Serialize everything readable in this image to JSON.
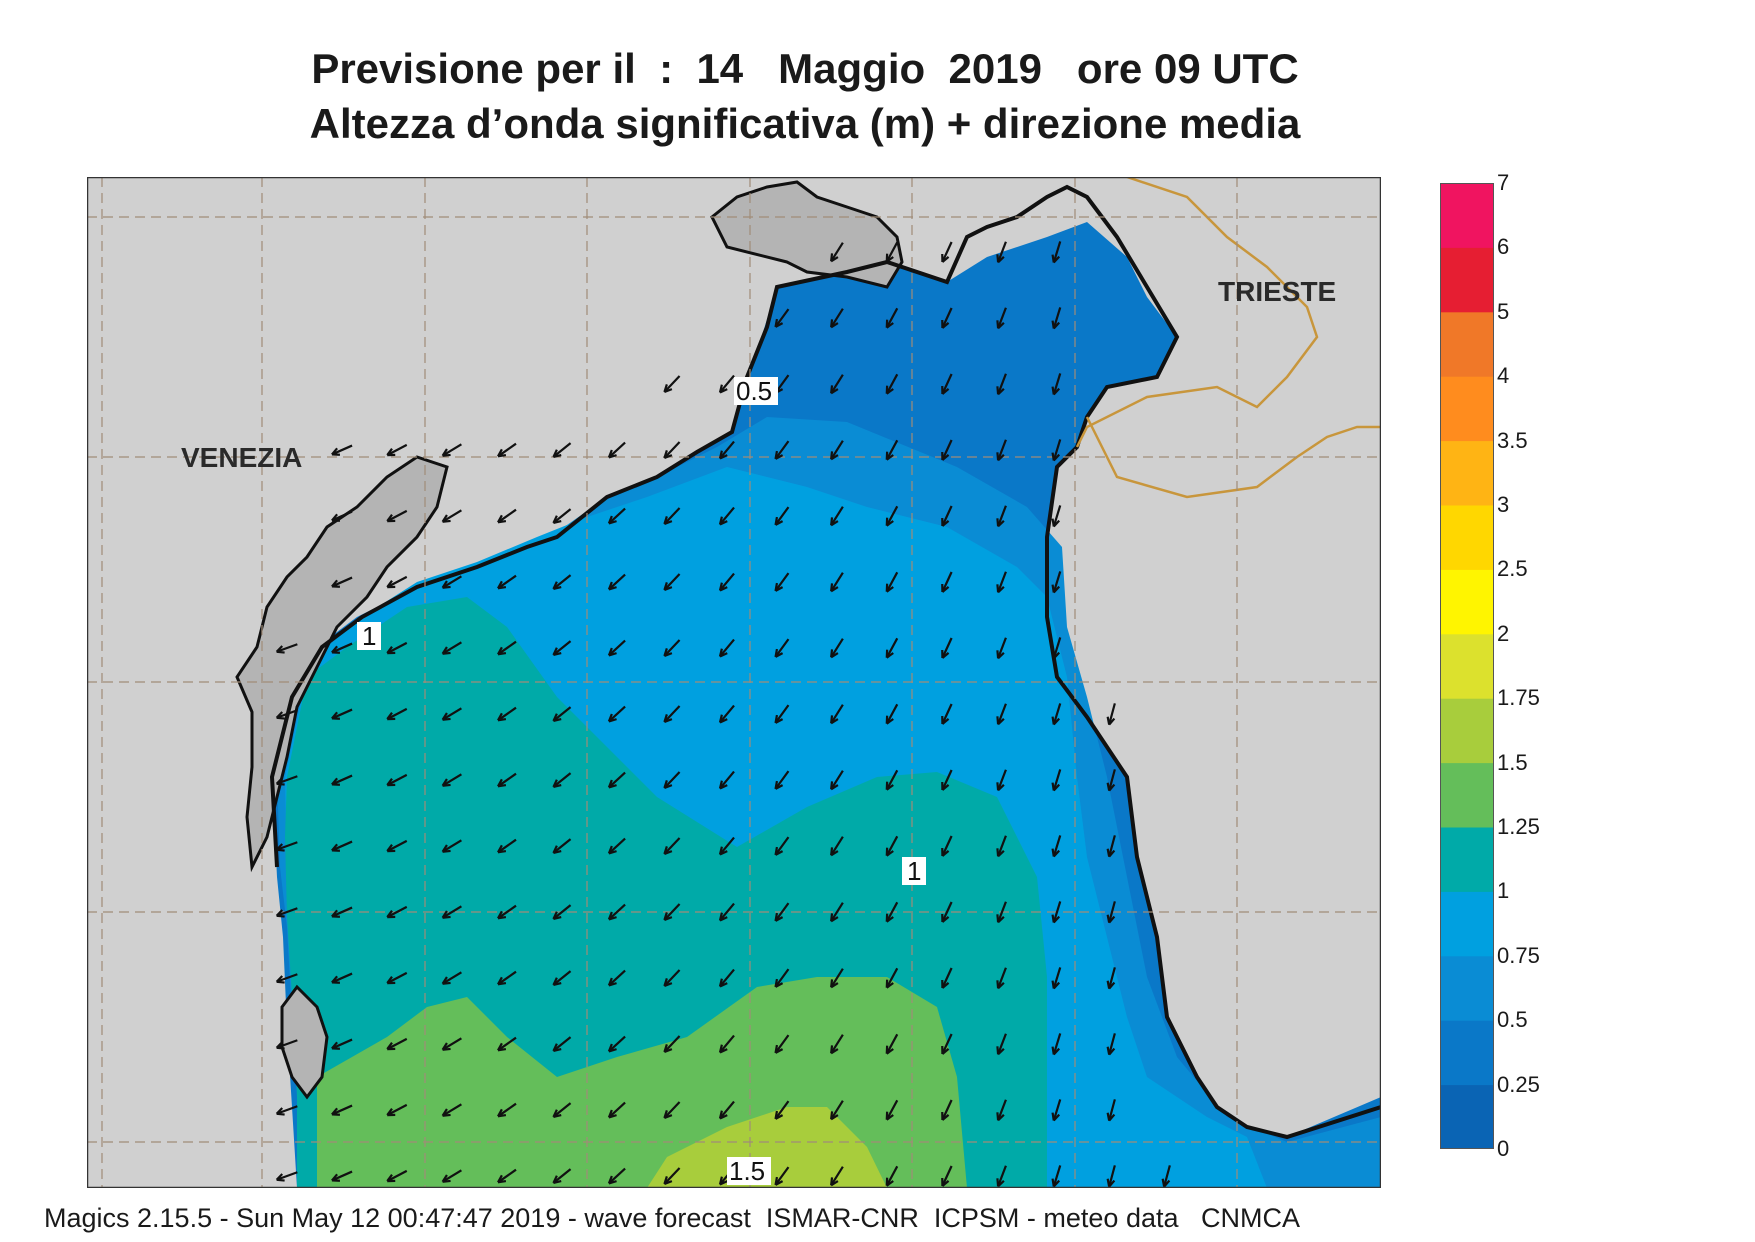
{
  "title": {
    "line1": "Previsione per il  :  14   Maggio  2019   ore 09 UTC",
    "line2": "Altezza d’onda significativa (m) + direzione media"
  },
  "map": {
    "cities": [
      {
        "name": "VENEZIA"
      },
      {
        "name": "TRIESTE"
      }
    ],
    "contour_labels": [
      "0.5",
      "1",
      "1",
      "1.5"
    ],
    "colors": {
      "land": "#d0d0d0",
      "land_dark": "#b4b4b4",
      "border": "#c8963c",
      "grid": "#a08c78"
    }
  },
  "legend": {
    "levels": [
      "0",
      "0.25",
      "0.5",
      "0.75",
      "1",
      "1.25",
      "1.5",
      "1.75",
      "2",
      "2.5",
      "3",
      "3.5",
      "4",
      "5",
      "6",
      "7"
    ],
    "colors": [
      "#0a64b4",
      "#0a78c8",
      "#0a8cd4",
      "#00a0e0",
      "#00aaa8",
      "#64be5a",
      "#a8cd3c",
      "#dce12d",
      "#fff500",
      "#ffd700",
      "#ffb414",
      "#ff8c1e",
      "#f07828",
      "#e61e32",
      "#f01460"
    ]
  },
  "footer": "Magics 2.15.5 - Sun May 12 00:47:47 2019 - wave forecast  ISMAR-CNR  ICPSM - meteo data   CNMCA"
}
